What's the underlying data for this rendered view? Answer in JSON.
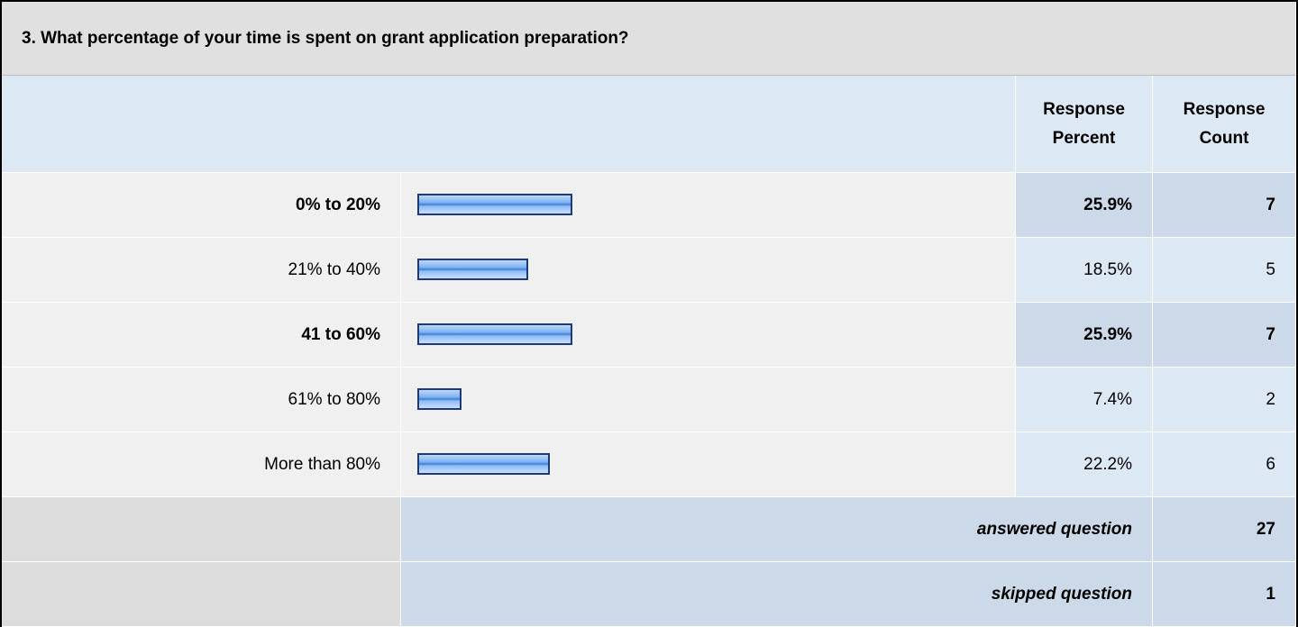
{
  "question": "3. What percentage of your time is spent on grant application preparation?",
  "headers": {
    "percent": "Response Percent",
    "count": "Response Count"
  },
  "rows": [
    {
      "label": "0% to 20%",
      "percent": 25.9,
      "percent_label": "25.9%",
      "count": 7,
      "bold": true
    },
    {
      "label": "21% to 40%",
      "percent": 18.5,
      "percent_label": "18.5%",
      "count": 5,
      "bold": false
    },
    {
      "label": "41 to 60%",
      "percent": 25.9,
      "percent_label": "25.9%",
      "count": 7,
      "bold": true
    },
    {
      "label": "61% to 80%",
      "percent": 7.4,
      "percent_label": "7.4%",
      "count": 2,
      "bold": false
    },
    {
      "label": "More than 80%",
      "percent": 22.2,
      "percent_label": "22.2%",
      "count": 6,
      "bold": false
    }
  ],
  "footer": [
    {
      "label": "answered question",
      "count": 27
    },
    {
      "label": "skipped question",
      "count": 1
    }
  ]
}
